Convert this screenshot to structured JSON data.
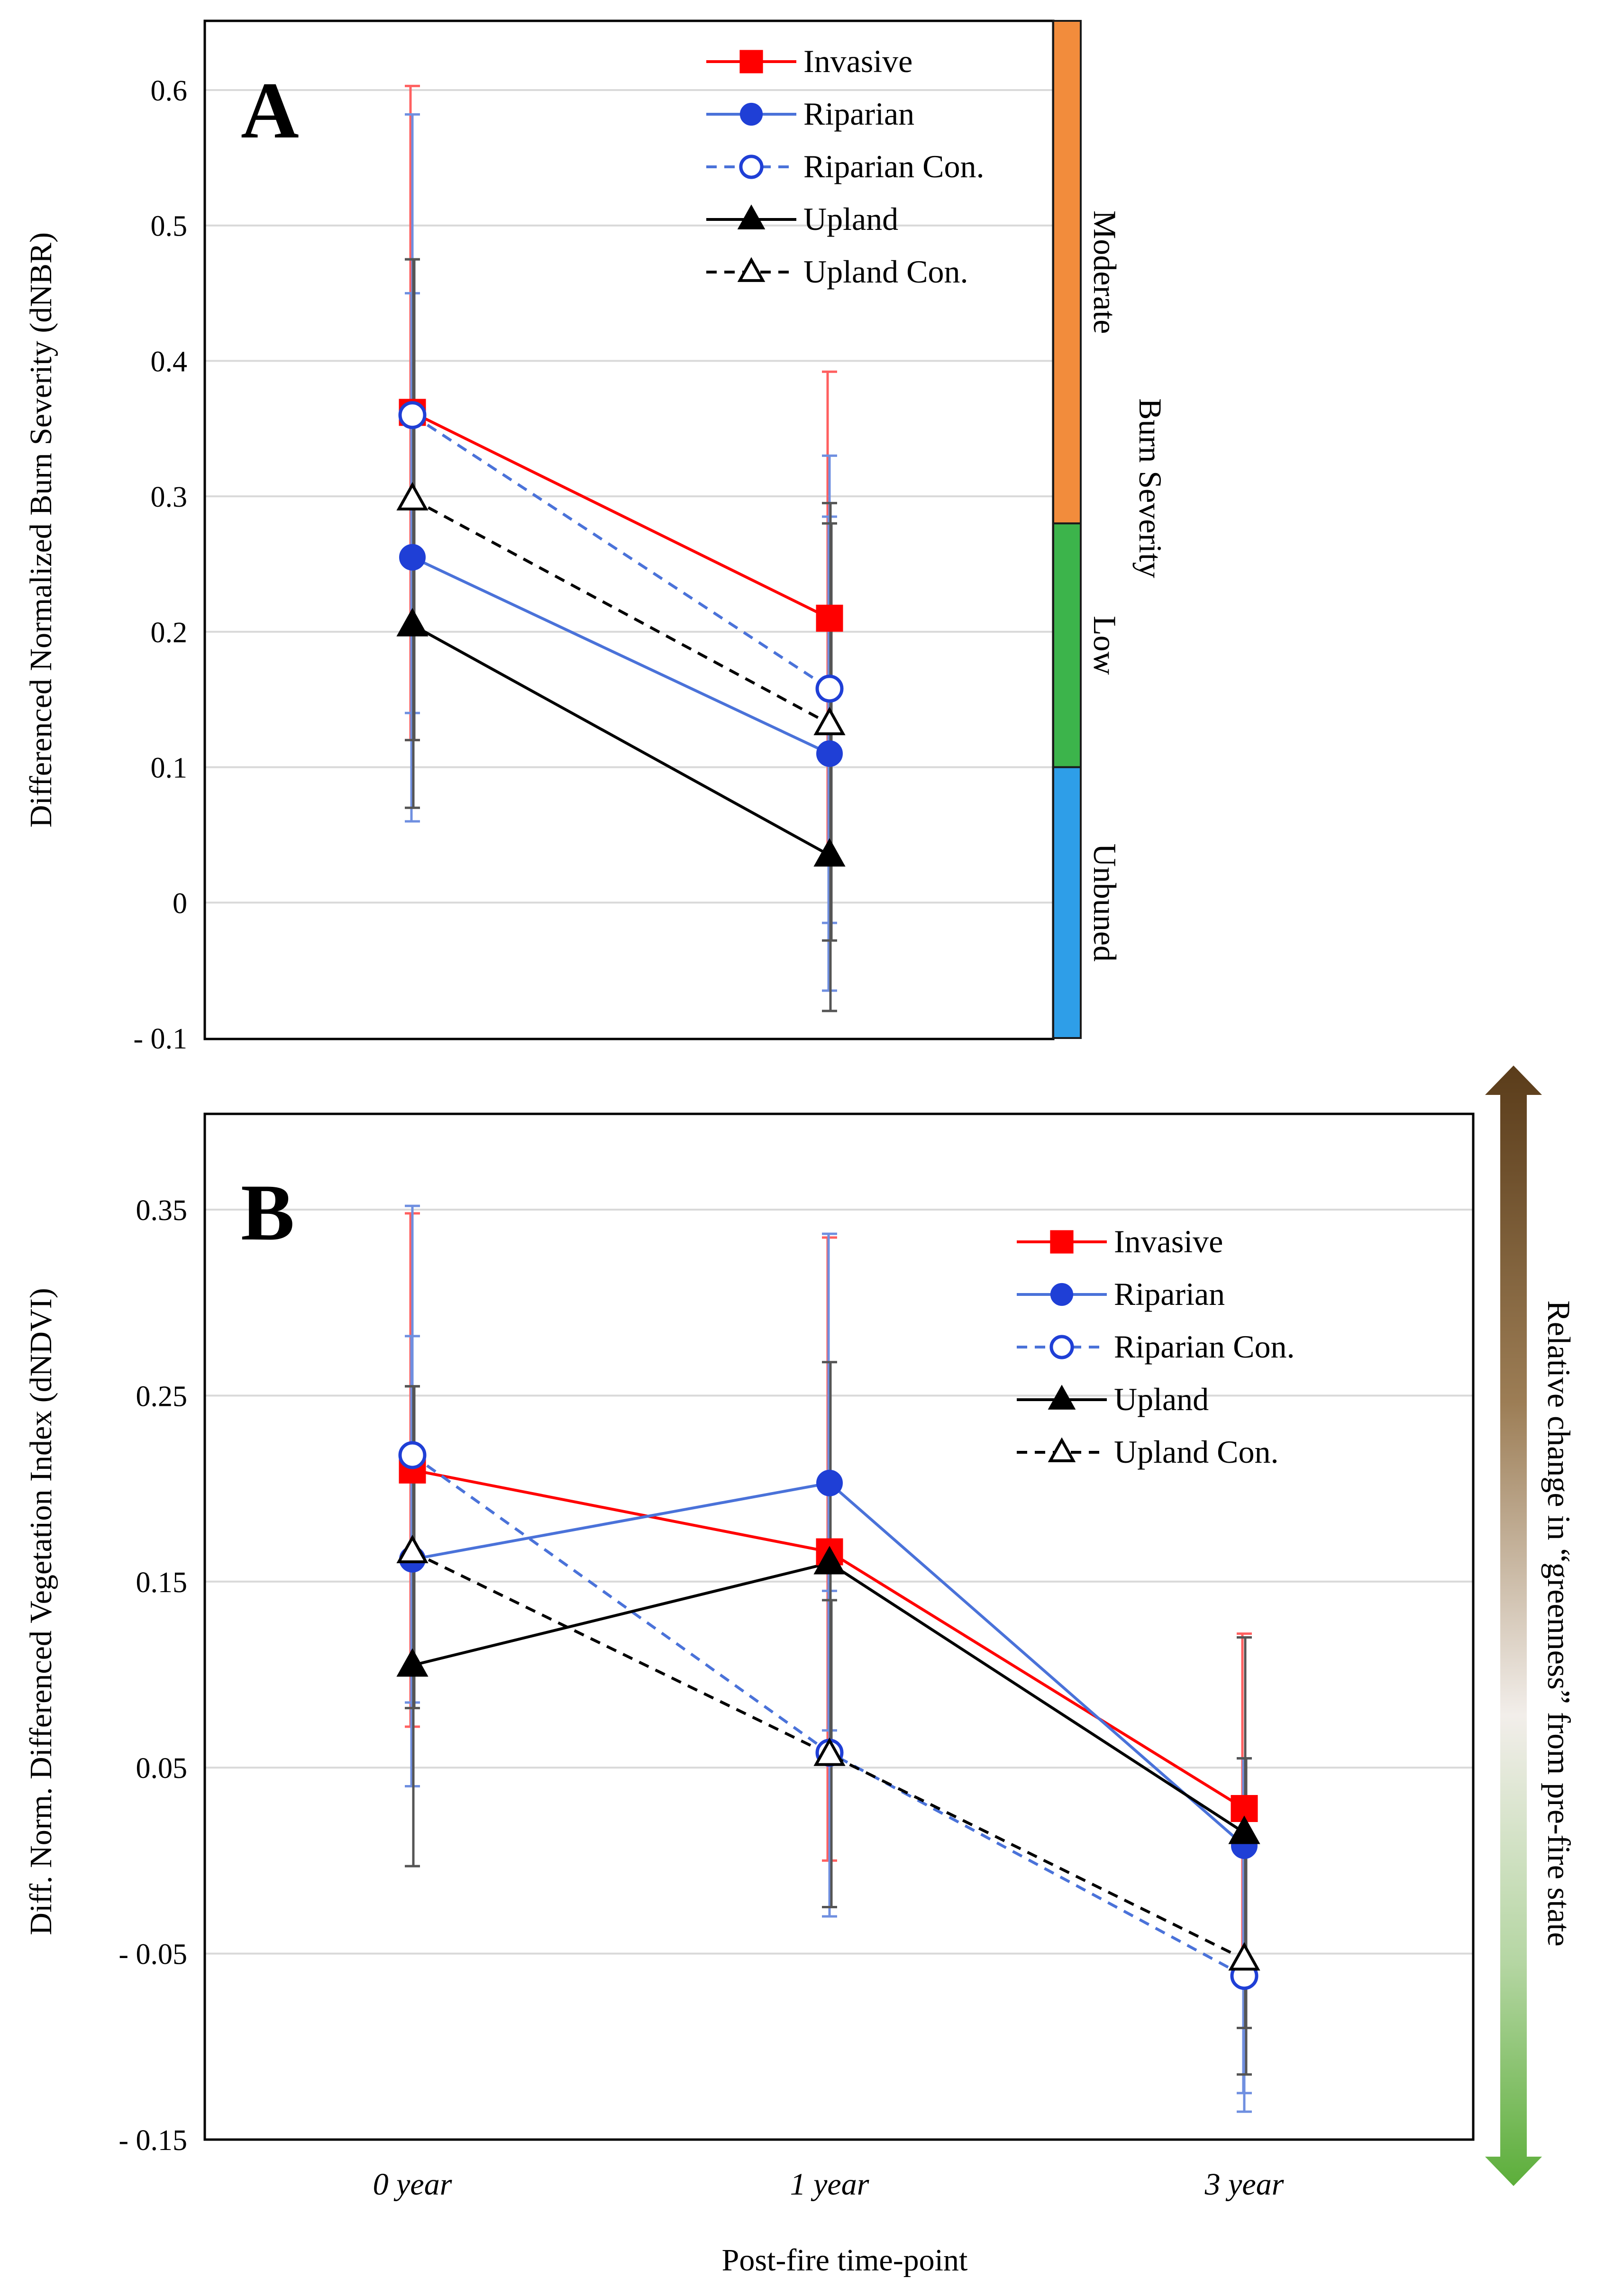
{
  "figure": {
    "x_axis_label": "Post-fire time-point",
    "colors": {
      "invasive": "#ff0000",
      "riparian": "#1f3fd6",
      "riparian_line": "#4a72d9",
      "upland": "#000000",
      "moderate": "#f28c3c",
      "low": "#3cb44b",
      "unburned": "#2e9ee8",
      "greenness_top": "#5a3c1a",
      "greenness_bottom": "#5cae3a"
    }
  },
  "chart_data": [
    {
      "panel": "A",
      "type": "line",
      "title": "",
      "ylabel": "Differenced Normalized Burn Severity (dNBR)",
      "xlabel": "",
      "categories": [
        "0 year",
        "1 year"
      ],
      "ylim": [
        -0.1,
        0.65
      ],
      "yticks": [
        -0.1,
        0,
        0.1,
        0.2,
        0.3,
        0.4,
        0.5,
        0.6
      ],
      "ytick_labels": [
        "- 0.1",
        "0",
        "0.1",
        "0.2",
        "0.3",
        "0.4",
        "0.5",
        "0.6"
      ],
      "grid": true,
      "legend": "top-right",
      "series": [
        {
          "name": "Invasive",
          "color": "#ff0000",
          "marker": "square",
          "filled": true,
          "dashed": false,
          "values": [
            0.362,
            0.21
          ],
          "err_hi": [
            0.603,
            0.392
          ],
          "err_lo": [
            0.12,
            0.03
          ]
        },
        {
          "name": "Riparian",
          "color": "#1f3fd6",
          "line_color": "#4a72d9",
          "marker": "circle",
          "filled": true,
          "dashed": false,
          "values": [
            0.255,
            0.11
          ],
          "err_hi": [
            0.45,
            0.285
          ],
          "err_lo": [
            0.06,
            -0.065
          ]
        },
        {
          "name": "Riparian Con.",
          "color": "#1f3fd6",
          "line_color": "#4a72d9",
          "marker": "circle",
          "filled": false,
          "dashed": true,
          "values": [
            0.36,
            0.158
          ],
          "err_hi": [
            0.582,
            0.33
          ],
          "err_lo": [
            0.14,
            -0.015
          ]
        },
        {
          "name": "Upland",
          "color": "#000000",
          "marker": "triangle",
          "filled": true,
          "dashed": false,
          "values": [
            0.205,
            0.035
          ],
          "err_hi": [
            0.475,
            0.295
          ],
          "err_lo": [
            0.07,
            -0.08
          ]
        },
        {
          "name": "Upland Con.",
          "color": "#000000",
          "marker": "triangle",
          "filled": false,
          "dashed": true,
          "values": [
            0.298,
            0.132
          ],
          "err_hi": [
            0.475,
            0.28
          ],
          "err_lo": [
            0.12,
            -0.028
          ]
        }
      ],
      "side_scale": {
        "title": "Burn Severity",
        "bands": [
          {
            "label": "Moderate",
            "from": 0.28,
            "to": 0.65,
            "color": "#f28c3c"
          },
          {
            "label": "Low",
            "from": 0.1,
            "to": 0.28,
            "color": "#3cb44b"
          },
          {
            "label": "Unbuned",
            "from": -0.1,
            "to": 0.1,
            "color": "#2e9ee8"
          }
        ]
      }
    },
    {
      "panel": "B",
      "type": "line",
      "title": "",
      "ylabel": "Diff. Norm. Differenced Vegetation Index (dNDVI)",
      "xlabel": "Post-fire time-point",
      "categories": [
        "0 year",
        "1 year",
        "3 year"
      ],
      "ylim": [
        -0.15,
        0.4
      ],
      "yticks": [
        -0.15,
        -0.05,
        0.05,
        0.15,
        0.25,
        0.35
      ],
      "ytick_labels": [
        "- 0.15",
        "- 0.05",
        "0.05",
        "0.15",
        "0.25",
        "0.35"
      ],
      "grid": true,
      "legend": "top-right",
      "series": [
        {
          "name": "Invasive",
          "color": "#ff0000",
          "marker": "square",
          "filled": true,
          "dashed": false,
          "values": [
            0.21,
            0.166,
            0.028
          ],
          "err_hi": [
            0.348,
            0.335,
            0.122
          ],
          "err_lo": [
            0.072,
            0.0,
            -0.062
          ]
        },
        {
          "name": "Riparian",
          "color": "#1f3fd6",
          "line_color": "#4a72d9",
          "marker": "circle",
          "filled": true,
          "dashed": false,
          "values": [
            0.162,
            0.203,
            0.008
          ],
          "err_hi": [
            0.282,
            0.337,
            0.055
          ],
          "err_lo": [
            0.04,
            0.07,
            -0.125
          ]
        },
        {
          "name": "Riparian Con.",
          "color": "#1f3fd6",
          "line_color": "#4a72d9",
          "marker": "circle",
          "filled": false,
          "dashed": true,
          "values": [
            0.218,
            0.058,
            -0.062
          ],
          "err_hi": [
            0.352,
            0.145,
            0.055
          ],
          "err_lo": [
            0.085,
            -0.03,
            -0.135
          ]
        },
        {
          "name": "Upland",
          "color": "#000000",
          "marker": "triangle",
          "filled": true,
          "dashed": false,
          "values": [
            0.105,
            0.16,
            0.015
          ],
          "err_hi": [
            0.255,
            0.268,
            0.12
          ],
          "err_lo": [
            -0.003,
            0.058,
            -0.09
          ]
        },
        {
          "name": "Upland Con.",
          "color": "#000000",
          "marker": "triangle",
          "filled": false,
          "dashed": true,
          "values": [
            0.166,
            0.057,
            -0.053
          ],
          "err_hi": [
            0.255,
            0.14,
            0.055
          ],
          "err_lo": [
            0.082,
            -0.025,
            -0.115
          ]
        }
      ],
      "side_scale": {
        "title": "Relative change in “greenness” from pre-fire state"
      }
    }
  ]
}
